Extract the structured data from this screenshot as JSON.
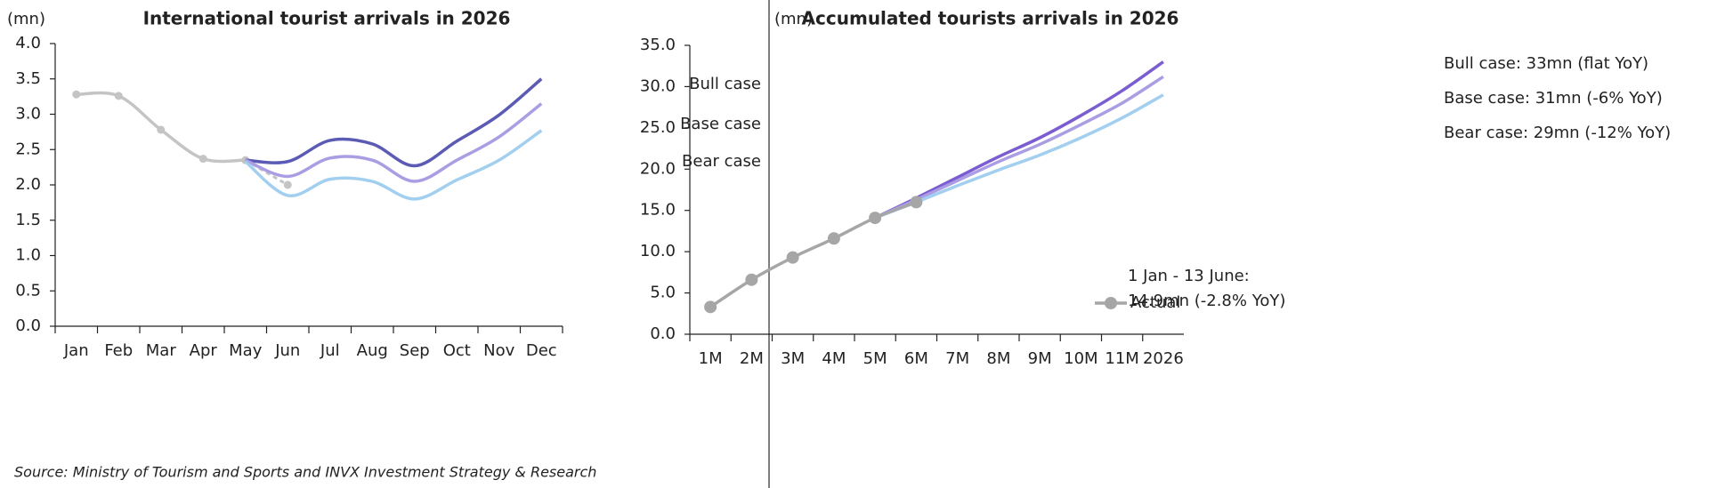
{
  "chart_data": [
    {
      "type": "line",
      "title": "International tourist arrivals in 2026",
      "y_label": "(mn)",
      "categories": [
        "Jan",
        "Feb",
        "Mar",
        "Apr",
        "May",
        "Jun",
        "Jul",
        "Aug",
        "Sep",
        "Oct",
        "Nov",
        "Dec"
      ],
      "ylim": [
        0,
        4
      ],
      "yticks": [
        {
          "value": 0,
          "label": "0.0"
        },
        {
          "value": 0.5,
          "label": "0.5"
        },
        {
          "value": 1,
          "label": "1.0"
        },
        {
          "value": 1.5,
          "label": "1.5"
        },
        {
          "value": 2,
          "label": "2.0"
        },
        {
          "value": 2.5,
          "label": "2.5"
        },
        {
          "value": 3,
          "label": "3.0"
        },
        {
          "value": 3.5,
          "label": "3.5"
        },
        {
          "value": 4,
          "label": "4.0"
        }
      ],
      "series": [
        {
          "color": "#c4c4c4",
          "markers": true,
          "values": [
            3.28,
            3.26,
            2.78,
            2.37,
            2.35,
            null,
            null,
            null,
            null,
            null,
            null,
            null
          ]
        },
        {
          "color": "#c4c4c4",
          "markers": true,
          "dashed": true,
          "values": [
            null,
            null,
            null,
            null,
            null,
            2.0,
            null,
            null,
            null,
            null,
            null,
            null
          ]
        },
        {
          "name": "Bull case",
          "label": "end",
          "color": "#5b5bb5",
          "values": [
            null,
            null,
            null,
            null,
            2.35,
            2.33,
            2.63,
            2.58,
            2.27,
            2.62,
            2.99,
            3.5
          ]
        },
        {
          "name": "Base case",
          "label": "end",
          "color": "#ab9de3",
          "values": [
            null,
            null,
            null,
            null,
            2.35,
            2.12,
            2.38,
            2.35,
            2.05,
            2.35,
            2.68,
            3.15
          ]
        },
        {
          "name": "Bear case",
          "label": "end",
          "color": "#a2cff0",
          "values": [
            null,
            null,
            null,
            null,
            2.33,
            1.85,
            2.08,
            2.05,
            1.8,
            2.07,
            2.35,
            2.77
          ]
        }
      ]
    },
    {
      "type": "line",
      "title": "Accumulated tourists arrivals in 2026",
      "y_label": "(mn)",
      "categories": [
        "1M",
        "2M",
        "3M",
        "4M",
        "5M",
        "6M",
        "7M",
        "8M",
        "9M",
        "10M",
        "11M",
        "2026"
      ],
      "ylim": [
        0,
        35
      ],
      "yticks": [
        {
          "value": 0,
          "label": "0.0"
        },
        {
          "value": 5,
          "label": "5.0"
        },
        {
          "value": 10,
          "label": "10.0"
        },
        {
          "value": 15,
          "label": "15.0"
        },
        {
          "value": 20,
          "label": "20.0"
        },
        {
          "value": 25,
          "label": "25.0"
        },
        {
          "value": 30,
          "label": "30.0"
        },
        {
          "value": 35,
          "label": "35.0"
        }
      ],
      "legend": "lower right",
      "annotation": [
        "1 Jan - 13 June:",
        "14.9mn (-2.8% YoY)"
      ],
      "series": [
        {
          "name": "Bull case: 33mn (flat YoY)",
          "label": "end",
          "color": "#7a5dd0",
          "values": [
            null,
            null,
            null,
            null,
            14.1,
            16.5,
            19.0,
            21.5,
            23.8,
            26.5,
            29.5,
            33.0
          ]
        },
        {
          "name": "Base case: 31mn (-6% YoY)",
          "label": "end",
          "color": "#ab9de3",
          "values": [
            null,
            null,
            null,
            null,
            14.1,
            16.3,
            18.6,
            20.9,
            23.0,
            25.4,
            28.0,
            31.2
          ]
        },
        {
          "name": "Bear case: 29mn (-12% YoY)",
          "label": "end",
          "color": "#a2cff0",
          "values": [
            null,
            null,
            null,
            null,
            14.1,
            16.0,
            18.0,
            19.9,
            21.7,
            23.8,
            26.2,
            29.0
          ]
        },
        {
          "name": "Actual",
          "label": "legend",
          "color": "#a6a6a6",
          "markers": true,
          "values": [
            3.3,
            6.6,
            9.3,
            11.6,
            14.1,
            16.0,
            null,
            null,
            null,
            null,
            null,
            null
          ]
        }
      ]
    }
  ],
  "source": "Source: Ministry of Tourism and Sports and INVX Investment Strategy & Research"
}
